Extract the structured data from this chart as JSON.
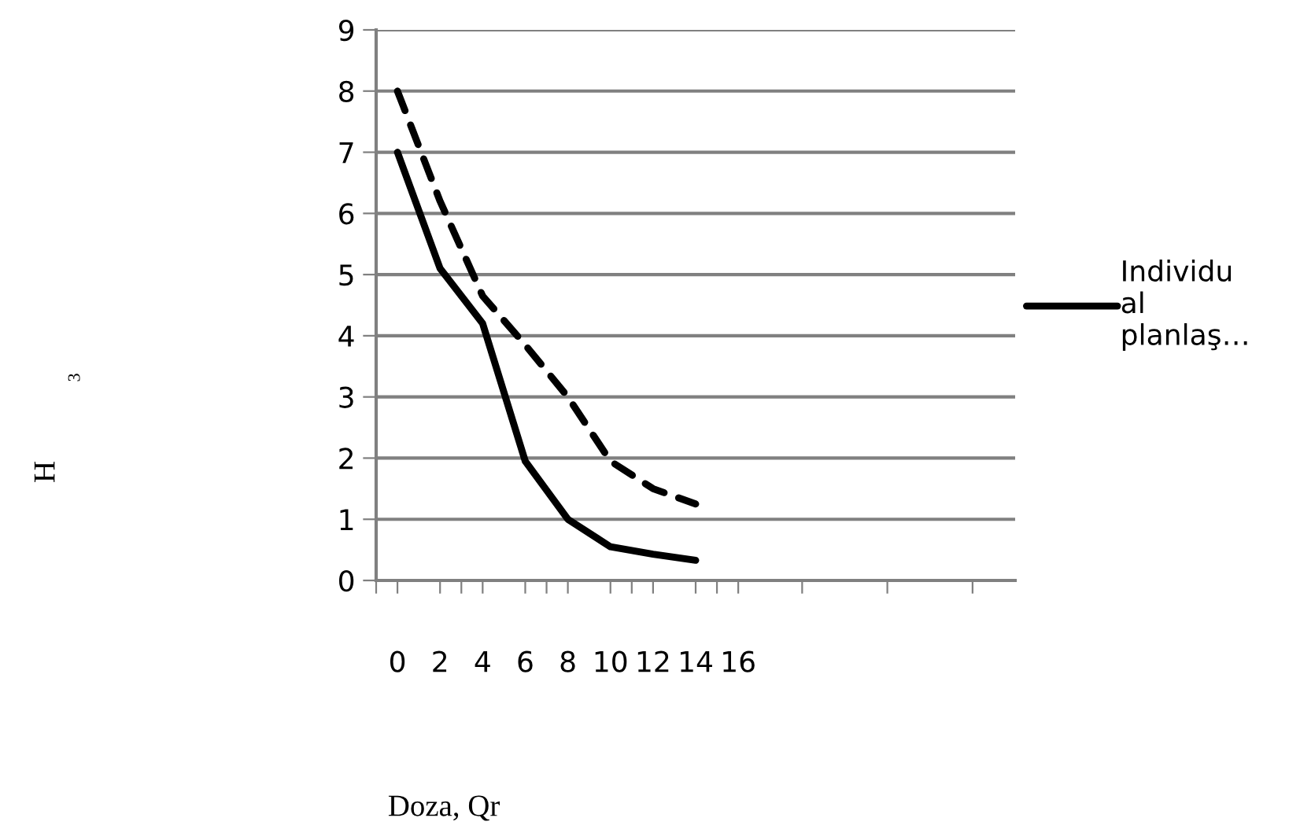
{
  "chart_data": {
    "type": "line",
    "xlabel": "Doza, Qr",
    "annotations": [
      "H",
      "3"
    ],
    "x": [
      0,
      2,
      4,
      6,
      8,
      10,
      12,
      14
    ],
    "series": [
      {
        "name": "Individu\nal\nplanlaş…",
        "color": "#000000",
        "line_style": "solid",
        "values": [
          7.0,
          5.1,
          4.2,
          1.95,
          1.0,
          0.55,
          0.43,
          0.33
        ]
      },
      {
        "color": "#000000",
        "line_style": "dashed",
        "values": [
          8.0,
          6.2,
          4.65,
          3.85,
          3.0,
          1.95,
          1.5,
          1.25
        ]
      }
    ],
    "xlim": [
      -1,
      29
    ],
    "xticks": [
      {
        "value": -1,
        "label": null
      },
      0,
      2,
      4,
      6,
      8,
      10,
      12,
      14,
      16,
      {
        "value": 3,
        "label": null
      },
      {
        "value": 7,
        "label": null
      },
      {
        "value": 11,
        "label": null
      },
      {
        "value": 15,
        "label": null
      },
      {
        "value": 19,
        "label": null
      },
      {
        "value": 23,
        "label": null
      },
      {
        "value": 27,
        "label": null
      }
    ],
    "ylim": [
      0,
      9
    ],
    "yticks": [
      0,
      1,
      2,
      3,
      4,
      5,
      6,
      7,
      8,
      9
    ],
    "grid": "y",
    "legend": "right",
    "marker": "none"
  }
}
